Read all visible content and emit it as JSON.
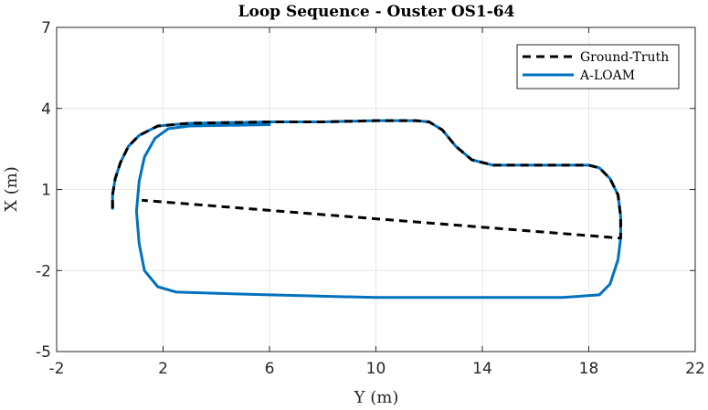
{
  "chart_data": {
    "type": "line",
    "title": "Loop Sequence - Ouster OS1-64",
    "xlabel": "Y (m)",
    "ylabel": "X (m)",
    "xlim": [
      -2,
      22
    ],
    "ylim": [
      -5,
      7
    ],
    "xticks": [
      -2,
      2,
      6,
      10,
      14,
      18,
      22
    ],
    "yticks": [
      -5,
      -2,
      1,
      4,
      7
    ],
    "grid": true,
    "legend_position": "top-right",
    "series": [
      {
        "name": "Ground-Truth",
        "color": "#000000",
        "style": "dashed",
        "points": [
          [
            0.1,
            0.3
          ],
          [
            0.1,
            0.8
          ],
          [
            0.2,
            1.4
          ],
          [
            0.4,
            2.0
          ],
          [
            0.7,
            2.6
          ],
          [
            1.1,
            3.0
          ],
          [
            1.8,
            3.35
          ],
          [
            3.0,
            3.45
          ],
          [
            6.0,
            3.5
          ],
          [
            8.0,
            3.5
          ],
          [
            10.0,
            3.55
          ],
          [
            11.5,
            3.55
          ],
          [
            12.0,
            3.5
          ],
          [
            12.5,
            3.2
          ],
          [
            13.0,
            2.6
          ],
          [
            13.6,
            2.1
          ],
          [
            14.4,
            1.9
          ],
          [
            16.0,
            1.9
          ],
          [
            18.0,
            1.9
          ],
          [
            18.4,
            1.8
          ],
          [
            18.8,
            1.4
          ],
          [
            19.1,
            0.8
          ],
          [
            19.2,
            0.0
          ],
          [
            19.2,
            -0.8
          ],
          [
            1.2,
            0.6
          ]
        ]
      },
      {
        "name": "A-LOAM",
        "color": "#0072BD",
        "style": "solid",
        "points": [
          [
            0.1,
            0.3
          ],
          [
            0.1,
            0.8
          ],
          [
            0.2,
            1.4
          ],
          [
            0.4,
            2.0
          ],
          [
            0.7,
            2.6
          ],
          [
            1.1,
            3.0
          ],
          [
            1.8,
            3.35
          ],
          [
            3.0,
            3.45
          ],
          [
            6.0,
            3.5
          ],
          [
            8.0,
            3.5
          ],
          [
            10.0,
            3.55
          ],
          [
            11.5,
            3.55
          ],
          [
            12.0,
            3.5
          ],
          [
            12.5,
            3.2
          ],
          [
            13.0,
            2.6
          ],
          [
            13.6,
            2.1
          ],
          [
            14.4,
            1.9
          ],
          [
            16.0,
            1.9
          ],
          [
            18.0,
            1.9
          ],
          [
            18.4,
            1.8
          ],
          [
            18.8,
            1.4
          ],
          [
            19.1,
            0.8
          ],
          [
            19.2,
            0.0
          ],
          [
            19.2,
            -0.8
          ],
          [
            19.1,
            -1.6
          ],
          [
            18.8,
            -2.5
          ],
          [
            18.4,
            -2.9
          ],
          [
            17.0,
            -3.0
          ],
          [
            14.0,
            -3.0
          ],
          [
            10.0,
            -3.0
          ],
          [
            6.0,
            -2.9
          ],
          [
            2.5,
            -2.8
          ],
          [
            1.8,
            -2.6
          ],
          [
            1.3,
            -2.0
          ],
          [
            1.1,
            -1.0
          ],
          [
            1.0,
            0.2
          ],
          [
            1.1,
            1.3
          ],
          [
            1.3,
            2.2
          ],
          [
            1.7,
            2.9
          ],
          [
            2.2,
            3.25
          ],
          [
            3.0,
            3.35
          ],
          [
            6.0,
            3.4
          ]
        ]
      }
    ]
  }
}
